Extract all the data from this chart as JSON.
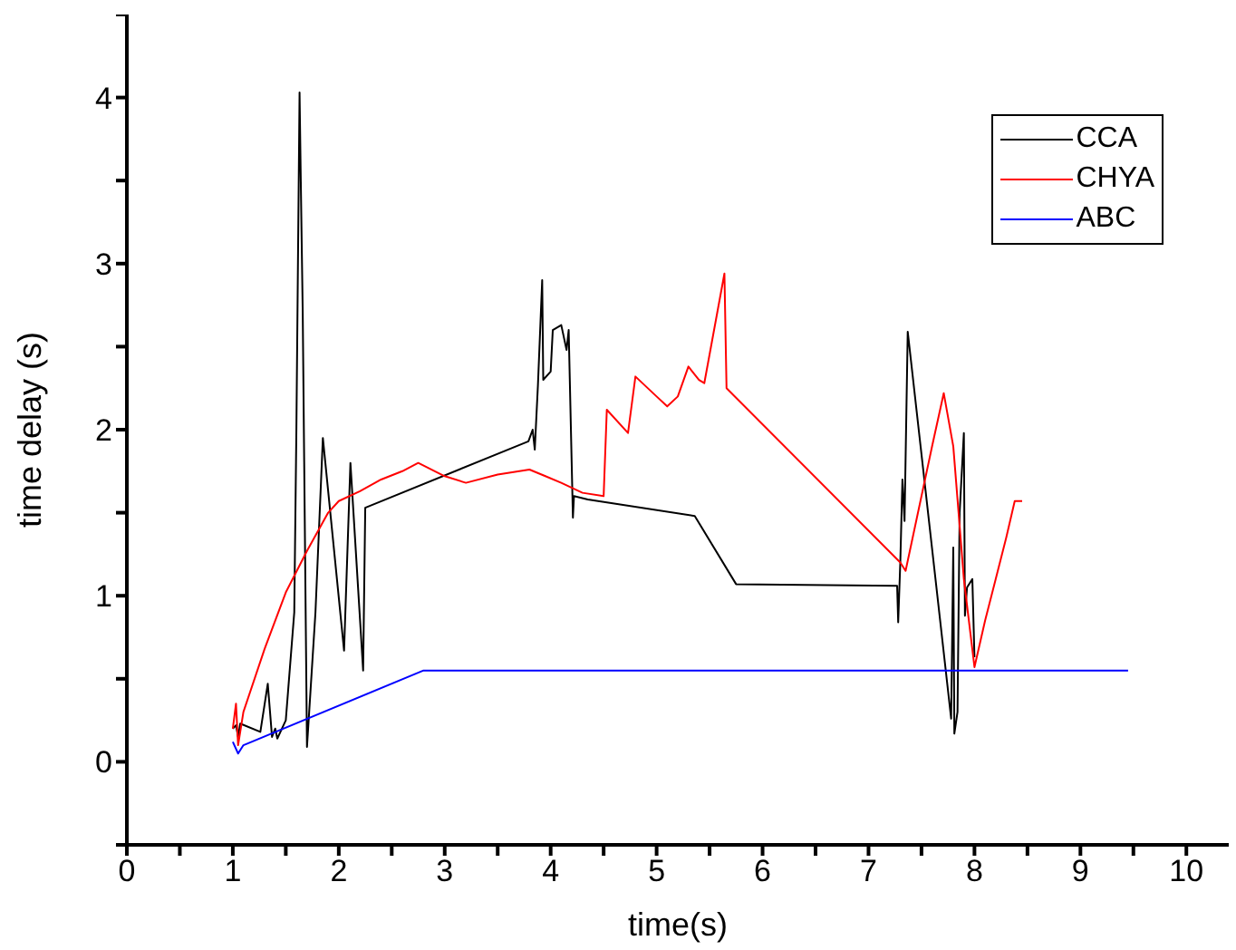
{
  "chart_data": {
    "type": "line",
    "xlabel": "time(s)",
    "ylabel": "time delay (s)",
    "xlim": [
      0,
      10.4
    ],
    "ylim": [
      -0.5,
      4.5
    ],
    "xticks": [
      0,
      {
        "value": 0.5,
        "label": null
      },
      1,
      {
        "value": 1.5,
        "label": null
      },
      2,
      {
        "value": 2.5,
        "label": null
      },
      3,
      {
        "value": 3.5,
        "label": null
      },
      4,
      {
        "value": 4.5,
        "label": null
      },
      5,
      {
        "value": 5.5,
        "label": null
      },
      6,
      {
        "value": 6.5,
        "label": null
      },
      7,
      {
        "value": 7.5,
        "label": null
      },
      8,
      {
        "value": 8.5,
        "label": null
      },
      9,
      {
        "value": 9.5,
        "label": null
      },
      10
    ],
    "yticks": [
      {
        "value": -0.5,
        "label": null
      },
      0,
      {
        "value": 0.5,
        "label": null
      },
      1,
      {
        "value": 1.5,
        "label": null
      },
      2,
      {
        "value": 2.5,
        "label": null
      },
      3,
      {
        "value": 3.5,
        "label": null
      },
      4,
      {
        "value": 4.5,
        "label": null
      }
    ],
    "grid": false,
    "legend": "top right",
    "marker": "none",
    "line_style": "solid",
    "series": [
      {
        "name": "CCA",
        "color": "#000000",
        "x": [
          1.0,
          1.03,
          1.05,
          1.07,
          1.26,
          1.33,
          1.37,
          1.4,
          1.42,
          1.5,
          1.58,
          1.6,
          1.63,
          1.64,
          1.66,
          1.7,
          1.78,
          1.85,
          2.05,
          2.11,
          2.23,
          2.25,
          3.79,
          3.83,
          3.85,
          3.88,
          3.92,
          3.93,
          4.0,
          4.02,
          4.1,
          4.15,
          4.17,
          4.21,
          4.22,
          4.35,
          5.36,
          5.75,
          7.27,
          7.28,
          7.3,
          7.32,
          7.34,
          7.37,
          7.78,
          7.8,
          7.81,
          7.84,
          7.86,
          7.9,
          7.91,
          7.93,
          7.98,
          8.0
        ],
        "values": [
          0.2,
          0.22,
          0.15,
          0.23,
          0.18,
          0.47,
          0.15,
          0.2,
          0.14,
          0.25,
          0.9,
          2.0,
          4.03,
          3.57,
          2.7,
          0.09,
          0.9,
          1.95,
          0.67,
          1.8,
          0.55,
          1.53,
          1.93,
          2.0,
          1.88,
          2.27,
          2.9,
          2.3,
          2.35,
          2.6,
          2.63,
          2.48,
          2.6,
          1.47,
          1.6,
          1.58,
          1.48,
          1.07,
          1.06,
          0.84,
          1.2,
          1.7,
          1.45,
          2.59,
          0.26,
          1.29,
          0.17,
          0.3,
          1.5,
          1.98,
          0.88,
          1.05,
          1.1,
          0.63
        ]
      },
      {
        "name": "CHYA",
        "color": "#ff0000",
        "x": [
          1.0,
          1.03,
          1.05,
          1.1,
          1.3,
          1.5,
          1.7,
          1.9,
          2.0,
          2.2,
          2.4,
          2.6,
          2.75,
          3.0,
          3.2,
          3.5,
          3.8,
          3.95,
          4.1,
          4.3,
          4.5,
          4.53,
          4.73,
          4.8,
          5.0,
          5.1,
          5.2,
          5.3,
          5.4,
          5.45,
          5.64,
          5.66,
          7.3,
          7.35,
          7.5,
          7.6,
          7.71,
          7.8,
          7.9,
          8.0,
          8.1,
          8.2,
          8.3,
          8.38,
          8.45
        ],
        "values": [
          0.2,
          0.35,
          0.1,
          0.3,
          0.68,
          1.02,
          1.27,
          1.5,
          1.57,
          1.63,
          1.7,
          1.75,
          1.8,
          1.72,
          1.68,
          1.73,
          1.76,
          1.72,
          1.68,
          1.62,
          1.6,
          2.12,
          1.98,
          2.32,
          2.2,
          2.14,
          2.2,
          2.38,
          2.3,
          2.28,
          2.94,
          2.25,
          1.2,
          1.15,
          1.6,
          1.9,
          2.22,
          1.9,
          1.1,
          0.57,
          0.85,
          1.1,
          1.35,
          1.57,
          1.57
        ]
      },
      {
        "name": "ABC",
        "color": "#0000ff",
        "x": [
          1.0,
          1.05,
          1.1,
          2.8,
          9.45
        ],
        "values": [
          0.12,
          0.05,
          0.1,
          0.55,
          0.55
        ]
      }
    ]
  }
}
